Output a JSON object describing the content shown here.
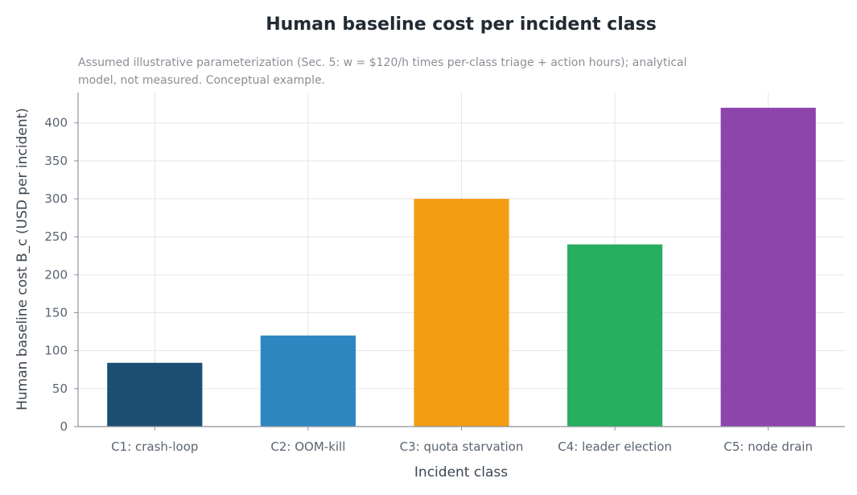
{
  "chart_data": {
    "type": "bar",
    "title": "Human baseline cost per incident class",
    "subtitle_lines": [
      "Assumed illustrative parameterization (Sec. 5: w = $120/h times per-class triage + action hours); analytical",
      "model, not measured. Conceptual example."
    ],
    "xlabel": "Incident class",
    "ylabel": "Human baseline cost B_c (USD per incident)",
    "categories": [
      "C1: crash-loop",
      "C2: OOM-kill",
      "C3: quota starvation",
      "C4: leader election",
      "C5: node drain"
    ],
    "values": [
      84,
      120,
      300,
      240,
      420
    ],
    "colors": [
      "#1b4f72",
      "#2e86c1",
      "#f39c12",
      "#27ae60",
      "#8e44ad"
    ],
    "ylim": [
      0,
      440
    ],
    "yticks": [
      0,
      50,
      100,
      150,
      200,
      250,
      300,
      350,
      400
    ],
    "grid": true,
    "legend": "none"
  }
}
